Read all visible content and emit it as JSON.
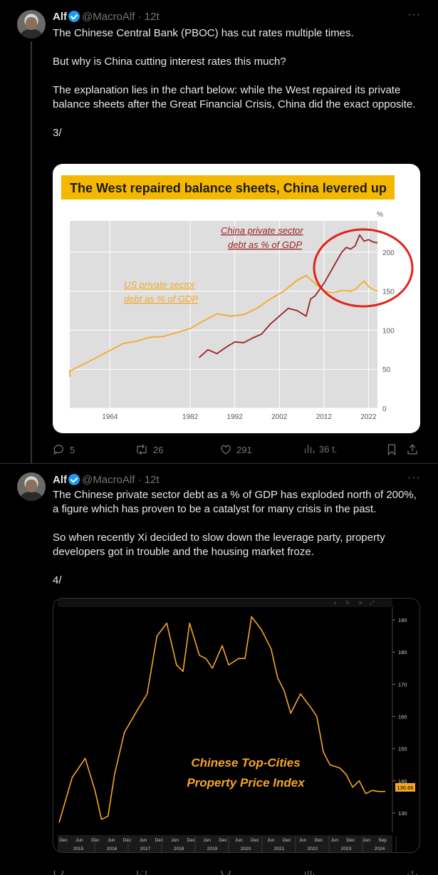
{
  "tweets": [
    {
      "author": "Alf",
      "handle": "@MacroAlf",
      "time": "12t",
      "paragraphs": [
        "The Chinese Central Bank (PBOC) has cut rates multiple times.",
        "But why is China cutting interest rates this much?",
        "The explanation lies in the chart below: while the West repaired its private balance sheets after the Great Financial Crisis, China did the exact opposite.",
        "3/"
      ],
      "stats": {
        "replies": "5",
        "retweets": "26",
        "likes": "291",
        "views": "36 t."
      }
    },
    {
      "author": "Alf",
      "handle": "@MacroAlf",
      "time": "12t",
      "paragraphs": [
        "The Chinese private sector debt as a % of GDP has exploded north of 200%, a figure which has proven to be a catalyst for many crisis in the past.",
        "So when recently Xi decided to slow down the leverage party, property developers got in trouble and the housing market froze.",
        "4/"
      ]
    }
  ],
  "chart_data": [
    {
      "type": "line",
      "title": "The West repaired balance sheets, China levered up",
      "ylabel": "%",
      "xticks": [
        "1964",
        "1982",
        "1992",
        "2002",
        "2012",
        "2022"
      ],
      "yticks": [
        "0",
        "50",
        "100",
        "150",
        "200"
      ],
      "xlim": [
        1955,
        2024
      ],
      "ylim": [
        0,
        240
      ],
      "grid": true,
      "colors": {
        "us": "#f2a92b",
        "china": "#9b2226",
        "accent": "#e32119"
      },
      "series": [
        {
          "name": "US private sector debt as % of GDP",
          "x": [
            1952,
            1955,
            1958,
            1961,
            1964,
            1967,
            1970,
            1973,
            1976,
            1979,
            1982,
            1985,
            1988,
            1991,
            1994,
            1997,
            2000,
            2003,
            2006,
            2008,
            2010,
            2012,
            2014,
            2016,
            2018,
            2019,
            2020,
            2021,
            2022,
            2023,
            2024
          ],
          "y": [
            40,
            48,
            56,
            65,
            74,
            83,
            86,
            91,
            92,
            97,
            102,
            112,
            121,
            118,
            120,
            128,
            140,
            150,
            164,
            170,
            160,
            150,
            148,
            151,
            150,
            152,
            158,
            163,
            156,
            152,
            150
          ]
        },
        {
          "name": "China private sector debt as % of GDP",
          "x": [
            1984,
            1986,
            1988,
            1990,
            1992,
            1994,
            1996,
            1998,
            2000,
            2002,
            2004,
            2006,
            2008,
            2009,
            2010,
            2012,
            2014,
            2016,
            2017,
            2018,
            2019,
            2020,
            2021,
            2022,
            2023,
            2024
          ],
          "y": [
            65,
            75,
            70,
            78,
            85,
            84,
            90,
            95,
            108,
            118,
            128,
            125,
            118,
            140,
            144,
            160,
            180,
            200,
            206,
            204,
            208,
            222,
            214,
            216,
            213,
            212
          ]
        }
      ],
      "annotations": [
        "China private sector debt as % of GDP",
        "US private sector debt as % of GDP"
      ]
    },
    {
      "type": "line",
      "title": "Chinese Top-Cities Property Price Index",
      "xticks": [
        "Dec",
        "Jun",
        "Dec",
        "Jun",
        "Dec",
        "Jun",
        "Dec",
        "Jun",
        "Dec",
        "Jun",
        "Dec",
        "Jun",
        "Dec",
        "Jun",
        "Dec",
        "Jun",
        "Dec",
        "Jun",
        "Dec",
        "Jun",
        "Sep"
      ],
      "year_ticks": [
        "2015",
        "2016",
        "2017",
        "2018",
        "2019",
        "2020",
        "2021",
        "2022",
        "2023",
        "2024"
      ],
      "yticks": [
        "130",
        "140",
        "150",
        "160",
        "170",
        "180",
        "190"
      ],
      "ylim": [
        124,
        194
      ],
      "last_value": "136.66",
      "colors": {
        "line": "#f6a623",
        "background": "#000000"
      },
      "series": [
        {
          "x": [
            0,
            0.04,
            0.08,
            0.11,
            0.13,
            0.15,
            0.17,
            0.2,
            0.24,
            0.27,
            0.3,
            0.33,
            0.36,
            0.38,
            0.4,
            0.43,
            0.45,
            0.47,
            0.5,
            0.52,
            0.55,
            0.57,
            0.59,
            0.62,
            0.65,
            0.67,
            0.69,
            0.71,
            0.74,
            0.77,
            0.79,
            0.81,
            0.83,
            0.86,
            0.88,
            0.9,
            0.92,
            0.94,
            0.96,
            0.98,
            1.0
          ],
          "y": [
            127,
            141,
            147,
            137,
            128,
            129,
            142,
            155,
            162,
            167,
            185,
            189,
            176,
            174,
            189,
            179,
            178,
            175,
            182,
            176,
            178,
            178,
            191,
            187,
            181,
            172,
            168,
            161,
            167,
            163,
            160,
            149,
            145,
            144,
            142,
            138,
            140,
            136,
            137,
            136.66,
            136.66
          ]
        }
      ]
    }
  ]
}
